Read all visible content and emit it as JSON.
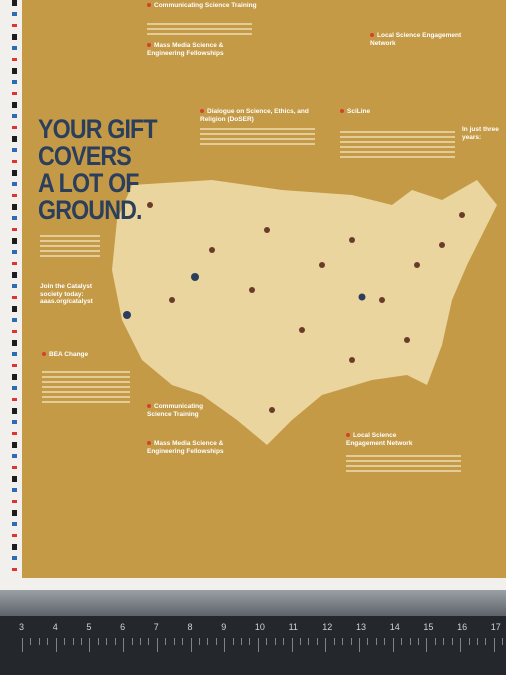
{
  "header": {
    "title_lines": [
      "YOUR GIFT",
      "COVERS",
      "A LOT OF",
      "GROUND."
    ]
  },
  "callout": {
    "title": "Join the Catalyst society today:",
    "url": "aaas.org/catalyst"
  },
  "sections": [
    {
      "title": "Communicating Science Training"
    },
    {
      "title": "Mass Media Science & Engineering Fellowships"
    },
    {
      "title": "Local Science Engagement Network"
    },
    {
      "title": "Dialogue on Science, Ethics, and Religion (DoSER)"
    },
    {
      "title": "SciLine"
    },
    {
      "title": "BEA Change"
    },
    {
      "title": "Communicating Science Training"
    },
    {
      "title": "Mass Media Science & Engineering Fellowships"
    },
    {
      "title": "Local Science Engagement Network"
    }
  ],
  "sidebar": {
    "title": "In just three years:"
  },
  "ruler": {
    "numbers": [
      3,
      4,
      5,
      6,
      7,
      8,
      9,
      10,
      11,
      12,
      13,
      14,
      15,
      16,
      17
    ]
  }
}
